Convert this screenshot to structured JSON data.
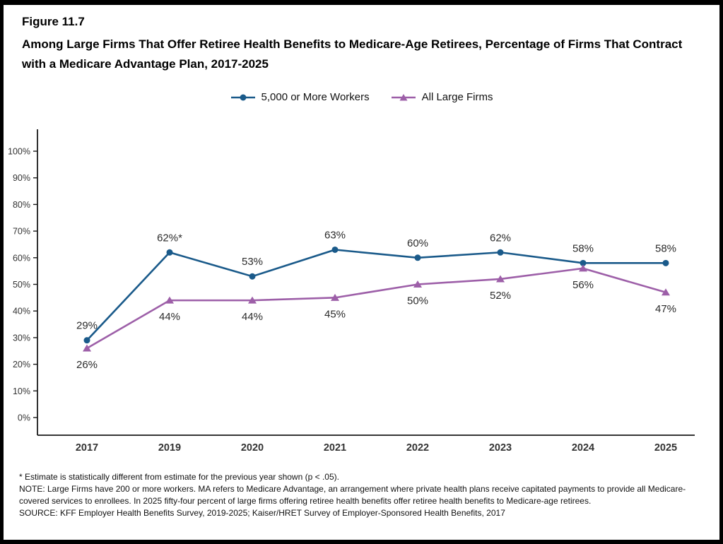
{
  "figure": {
    "label": "Figure 11.7"
  },
  "chart_data": {
    "type": "line",
    "title": "Among Large Firms That Offer Retiree Health Benefits to Medicare-Age Retirees, Percentage of Firms That Contract with a Medicare Advantage Plan, 2017-2025",
    "categories": [
      "2017",
      "2019",
      "2020",
      "2021",
      "2022",
      "2023",
      "2024",
      "2025"
    ],
    "series": [
      {
        "name": "5,000 or More Workers",
        "color": "#1a5a8a",
        "marker": "circle",
        "label_position": "above",
        "values": [
          29,
          62,
          53,
          63,
          60,
          62,
          58,
          58
        ],
        "point_labels": [
          "29%",
          "62%*",
          "53%",
          "63%",
          "60%",
          "62%",
          "58%",
          "58%"
        ]
      },
      {
        "name": "All Large Firms",
        "color": "#9d5fa8",
        "marker": "triangle",
        "label_position": "below",
        "values": [
          26,
          44,
          44,
          45,
          50,
          52,
          56,
          47
        ],
        "point_labels": [
          "26%",
          "44%",
          "44%",
          "45%",
          "50%",
          "52%",
          "56%",
          "47%"
        ]
      }
    ],
    "xlabel": "",
    "ylabel": "",
    "ylim": [
      0,
      100
    ],
    "ytick_step": 10,
    "ytick_labels": [
      "0%",
      "10%",
      "20%",
      "30%",
      "40%",
      "50%",
      "60%",
      "70%",
      "80%",
      "90%",
      "100%"
    ],
    "grid": false,
    "legend_position": "top"
  },
  "footnotes": {
    "asterisk": "* Estimate is statistically different from estimate for the previous year shown (p < .05).",
    "note": "NOTE: Large Firms have 200 or more workers.  MA refers to Medicare Advantage, an arrangement where private health plans receive capitated payments to provide all Medicare-covered services to enrollees.  In 2025 fifty-four percent of large firms offering retiree health benefits offer retiree health benefits to Medicare-age retirees.",
    "source": "SOURCE: KFF Employer Health Benefits Survey, 2019-2025; Kaiser/HRET Survey of Employer-Sponsored Health Benefits, 2017"
  }
}
